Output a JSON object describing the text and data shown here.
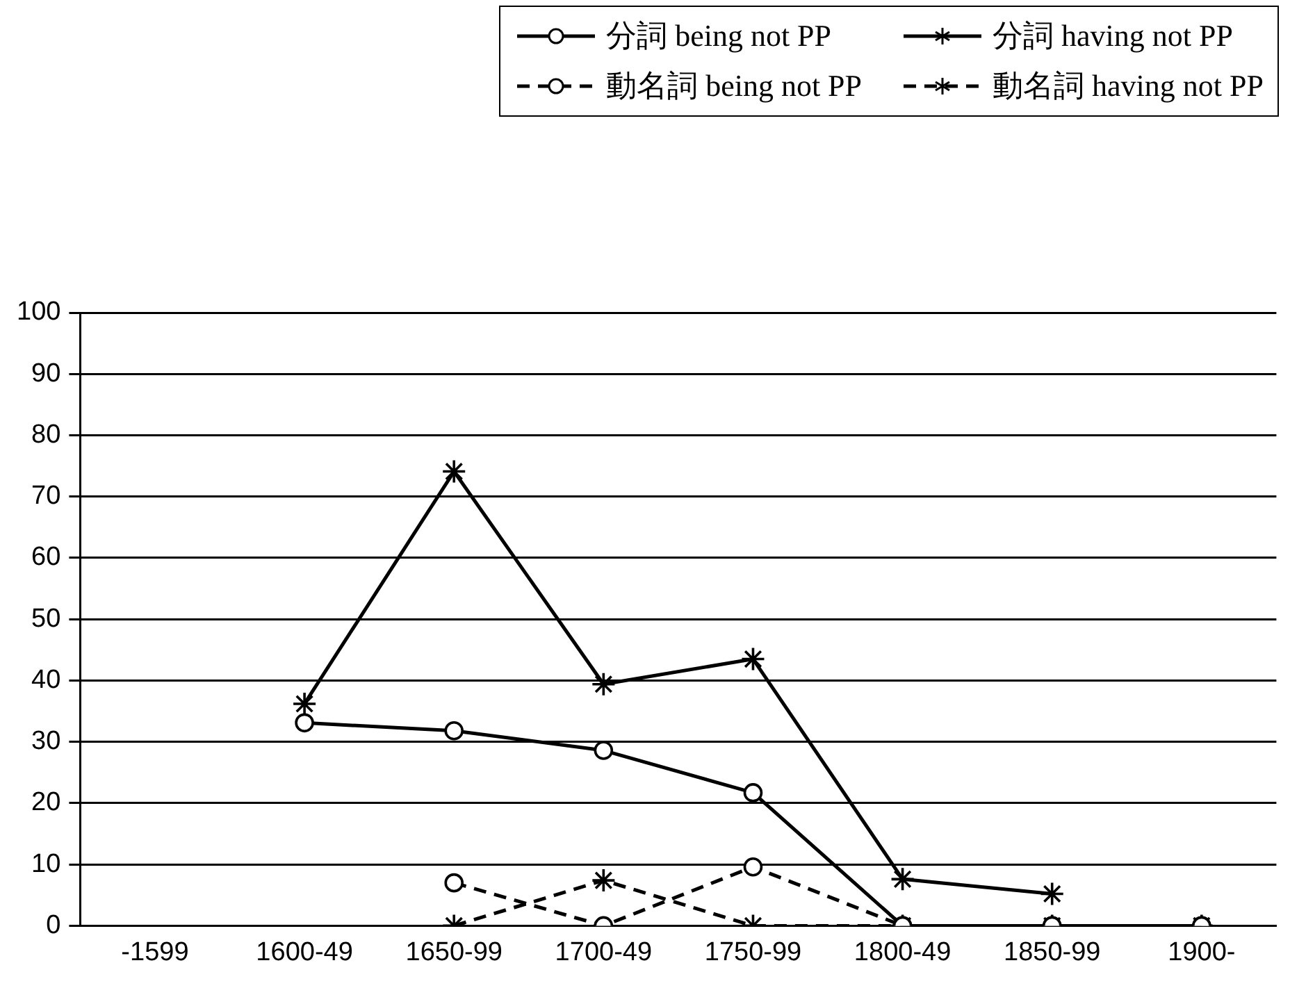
{
  "chart_data": {
    "type": "line",
    "categories": [
      "-1599",
      "1600-49",
      "1650-99",
      "1700-49",
      "1750-99",
      "1800-49",
      "1850-99",
      "1900-"
    ],
    "series": [
      {
        "name": "分詞 being not PP",
        "color": "#000000",
        "line_style": "solid",
        "marker": "circle",
        "values": [
          null,
          33.1,
          31.8,
          28.6,
          21.7,
          0,
          0,
          0
        ]
      },
      {
        "name": "分詞 having not PP",
        "color": "#000000",
        "line_style": "solid",
        "marker": "cross",
        "values": [
          null,
          36.2,
          74.1,
          39.4,
          43.5,
          7.6,
          5.2,
          null
        ]
      },
      {
        "name": "動名詞 being not PP",
        "color": "#000000",
        "line_style": "dashed",
        "marker": "circle",
        "values": [
          null,
          null,
          7,
          0,
          9.6,
          0,
          0,
          0
        ]
      },
      {
        "name": "動名詞 having not PP",
        "color": "#000000",
        "line_style": "dashed",
        "marker": "cross",
        "values": [
          null,
          null,
          0,
          7.4,
          0,
          0,
          0,
          0
        ]
      }
    ],
    "ylim": [
      0,
      100
    ],
    "yticks": [
      0,
      10,
      20,
      30,
      40,
      50,
      60,
      70,
      80,
      90,
      100
    ],
    "grid": "y",
    "legend": "top right"
  }
}
